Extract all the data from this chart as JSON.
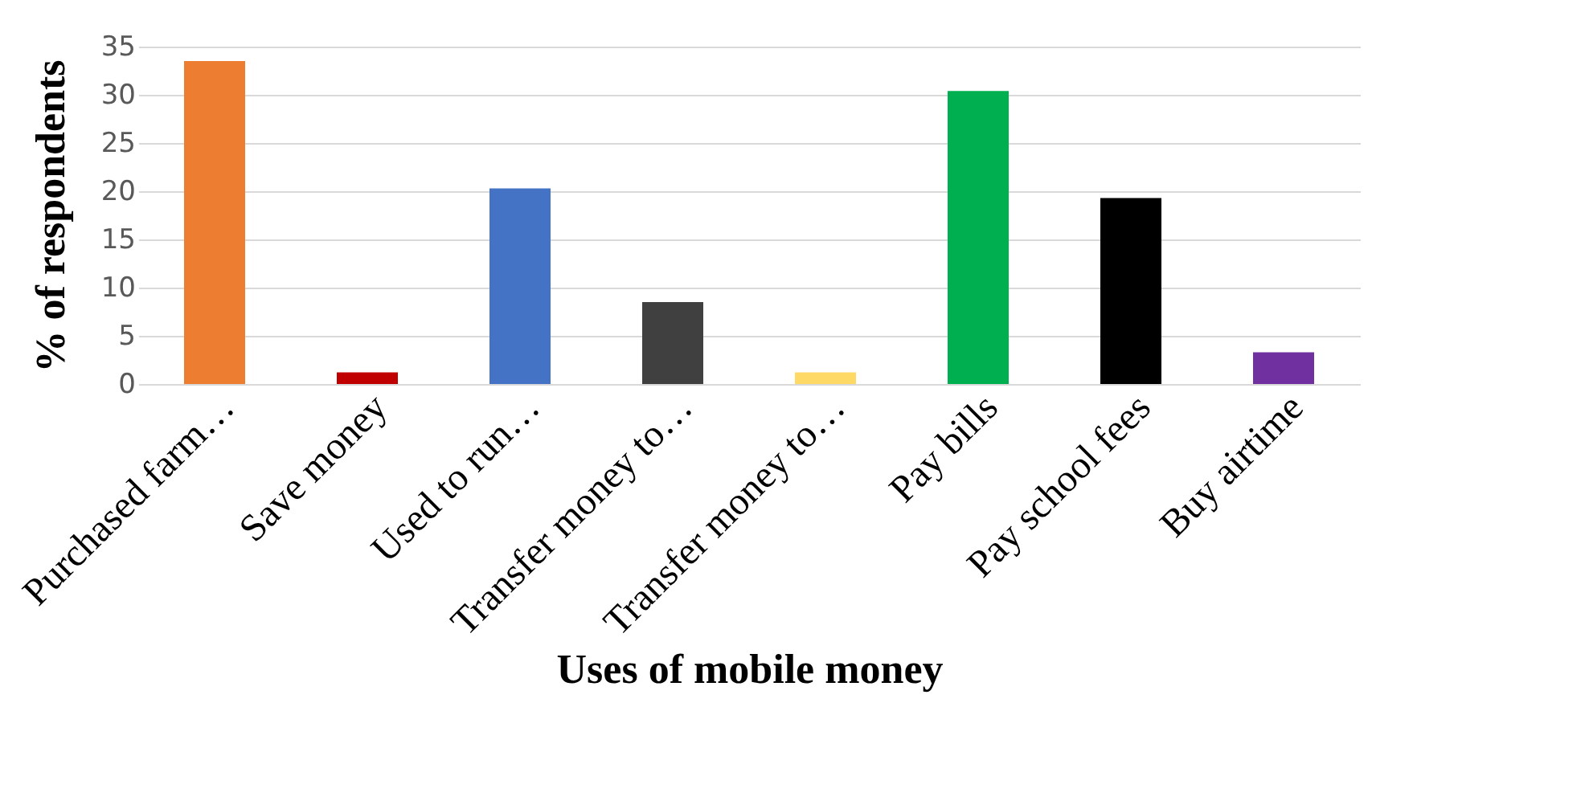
{
  "chart_data": {
    "type": "bar",
    "xlabel": "Uses of mobile money",
    "ylabel": "% of respondents",
    "categories": [
      "Purchased farm…",
      "Save money",
      "Used to run…",
      "Transfer money to…",
      "Transfer money to…",
      "Pay bills",
      "Pay school fees",
      "Buy airtime"
    ],
    "values": [
      33.5,
      1.2,
      20.3,
      8.5,
      1.2,
      30.4,
      19.3,
      3.3
    ],
    "colors": [
      "#ed7d31",
      "#c00000",
      "#4472c4",
      "#404040",
      "#ffd966",
      "#00b050",
      "#000000",
      "#7030a0"
    ],
    "ylim": [
      0,
      35
    ],
    "yticks": [
      0,
      5,
      10,
      15,
      20,
      25,
      30,
      35
    ],
    "grid": "y"
  }
}
